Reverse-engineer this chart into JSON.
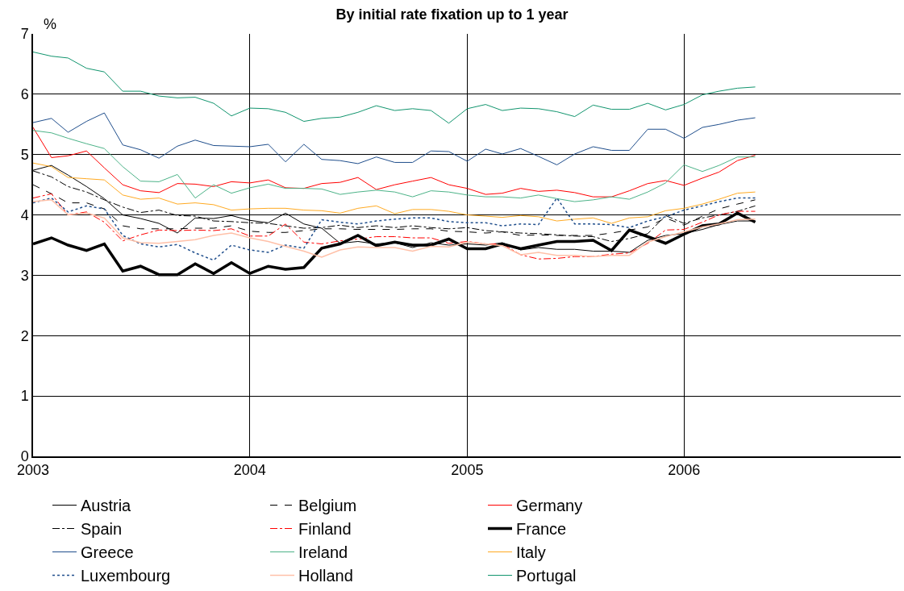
{
  "chart_data": {
    "type": "line",
    "title": "By initial rate fixation up to 1 year",
    "ylabel": "%",
    "x": [
      "2003-01",
      "2003-02",
      "2003-03",
      "2003-04",
      "2003-05",
      "2003-06",
      "2003-07",
      "2003-08",
      "2003-09",
      "2003-10",
      "2003-11",
      "2003-12",
      "2004-01",
      "2004-02",
      "2004-03",
      "2004-04",
      "2004-05",
      "2004-06",
      "2004-07",
      "2004-08",
      "2004-09",
      "2004-10",
      "2004-11",
      "2004-12",
      "2005-01",
      "2005-02",
      "2005-03",
      "2005-04",
      "2005-05",
      "2005-06",
      "2005-07",
      "2005-08",
      "2005-09",
      "2005-10",
      "2005-11",
      "2005-12",
      "2006-01",
      "2006-02",
      "2006-03",
      "2006-04",
      "2006-05"
    ],
    "xlim": [
      "2003-01",
      "2007-01"
    ],
    "xticks": [
      {
        "value": "2003-01",
        "label": "2003"
      },
      {
        "value": "2004-01",
        "label": "2004"
      },
      {
        "value": "2005-01",
        "label": "2005"
      },
      {
        "value": "2006-01",
        "label": "2006"
      }
    ],
    "ylim": [
      0,
      7
    ],
    "yticks": [
      0,
      1,
      2,
      3,
      4,
      5,
      6,
      7
    ],
    "grid": true,
    "legend": "bottom",
    "marker": "none",
    "series": [
      {
        "name": "Austria",
        "color": "#000000",
        "line_style": "solid",
        "values": [
          4.74,
          4.82,
          4.66,
          4.47,
          4.27,
          4.0,
          3.94,
          3.86,
          3.7,
          3.95,
          3.94,
          3.99,
          3.91,
          3.87,
          4.03,
          3.85,
          3.78,
          3.53,
          3.56,
          3.52,
          3.54,
          3.46,
          3.54,
          3.5,
          3.52,
          3.5,
          3.54,
          3.42,
          3.46,
          3.43,
          3.43,
          3.4,
          3.4,
          3.38,
          3.58,
          3.66,
          3.69,
          3.76,
          3.84,
          3.9,
          3.9
        ]
      },
      {
        "name": "Belgium",
        "color": "#000000",
        "line_style": "dashed",
        "values": [
          4.5,
          4.35,
          4.2,
          4.2,
          4.1,
          3.82,
          3.77,
          3.77,
          3.77,
          3.78,
          3.78,
          3.82,
          3.73,
          3.71,
          3.71,
          3.74,
          3.77,
          3.77,
          3.76,
          3.76,
          3.76,
          3.77,
          3.77,
          3.73,
          3.72,
          3.7,
          3.72,
          3.66,
          3.67,
          3.66,
          3.66,
          3.66,
          3.7,
          3.75,
          3.8,
          3.95,
          3.83,
          3.98,
          4.1,
          4.18,
          4.25
        ]
      },
      {
        "name": "Germany",
        "color": "#ff0000",
        "line_style": "solid",
        "values": [
          5.45,
          4.95,
          4.98,
          5.06,
          4.78,
          4.5,
          4.4,
          4.37,
          4.52,
          4.51,
          4.47,
          4.55,
          4.53,
          4.58,
          4.45,
          4.44,
          4.52,
          4.54,
          4.62,
          4.42,
          4.5,
          4.56,
          4.62,
          4.5,
          4.44,
          4.34,
          4.36,
          4.44,
          4.39,
          4.41,
          4.37,
          4.3,
          4.3,
          4.4,
          4.52,
          4.57,
          4.49,
          4.61,
          4.71,
          4.9,
          4.99
        ]
      },
      {
        "name": "Spain",
        "color": "#000000",
        "line_style": "dashdot",
        "values": [
          4.73,
          4.63,
          4.47,
          4.38,
          4.25,
          4.13,
          4.04,
          4.08,
          3.99,
          3.98,
          3.9,
          3.89,
          3.87,
          3.86,
          3.82,
          3.78,
          3.79,
          3.83,
          3.79,
          3.82,
          3.79,
          3.82,
          3.79,
          3.77,
          3.79,
          3.74,
          3.72,
          3.7,
          3.69,
          3.67,
          3.65,
          3.64,
          3.56,
          3.61,
          3.69,
          3.99,
          3.86,
          3.95,
          4.0,
          4.06,
          4.15
        ]
      },
      {
        "name": "Finland",
        "color": "#ff0000",
        "line_style": "dashdot",
        "values": [
          4.28,
          4.35,
          4.0,
          4.05,
          3.88,
          3.57,
          3.67,
          3.75,
          3.74,
          3.75,
          3.74,
          3.77,
          3.65,
          3.65,
          3.85,
          3.55,
          3.52,
          3.57,
          3.6,
          3.64,
          3.64,
          3.62,
          3.62,
          3.53,
          3.56,
          3.52,
          3.52,
          3.34,
          3.27,
          3.28,
          3.31,
          3.31,
          3.35,
          3.37,
          3.53,
          3.75,
          3.76,
          3.88,
          4.0,
          4.06,
          4.06
        ]
      },
      {
        "name": "France",
        "color": "#000000",
        "line_style": "solid",
        "values": [
          3.52,
          3.62,
          3.5,
          3.41,
          3.52,
          3.07,
          3.15,
          3.01,
          3.01,
          3.19,
          3.03,
          3.21,
          3.03,
          3.15,
          3.1,
          3.13,
          3.45,
          3.52,
          3.66,
          3.49,
          3.55,
          3.5,
          3.5,
          3.6,
          3.44,
          3.44,
          3.52,
          3.44,
          3.5,
          3.56,
          3.56,
          3.58,
          3.41,
          3.75,
          3.64,
          3.53,
          3.68,
          3.82,
          3.85,
          4.03,
          3.88
        ]
      },
      {
        "name": "Greece",
        "color": "#1f4e8c",
        "line_style": "solid",
        "values": [
          5.53,
          5.6,
          5.37,
          5.55,
          5.69,
          5.16,
          5.08,
          4.94,
          5.14,
          5.24,
          5.15,
          5.14,
          5.13,
          5.17,
          4.88,
          5.17,
          4.92,
          4.9,
          4.85,
          4.96,
          4.87,
          4.87,
          5.06,
          5.05,
          4.89,
          5.09,
          5.01,
          5.1,
          4.97,
          4.83,
          5.01,
          5.13,
          5.07,
          5.07,
          5.42,
          5.42,
          5.27,
          5.45,
          5.5,
          5.57,
          5.61
        ]
      },
      {
        "name": "Ireland",
        "color": "#4cb388",
        "line_style": "solid",
        "values": [
          5.4,
          5.36,
          5.27,
          5.18,
          5.1,
          4.8,
          4.56,
          4.55,
          4.67,
          4.28,
          4.5,
          4.36,
          4.45,
          4.51,
          4.44,
          4.44,
          4.43,
          4.34,
          4.38,
          4.41,
          4.38,
          4.3,
          4.4,
          4.38,
          4.33,
          4.3,
          4.3,
          4.28,
          4.33,
          4.27,
          4.22,
          4.25,
          4.3,
          4.26,
          4.38,
          4.53,
          4.83,
          4.72,
          4.82,
          4.96,
          4.96
        ]
      },
      {
        "name": "Italy",
        "color": "#ffaa22",
        "line_style": "solid",
        "values": [
          4.86,
          4.8,
          4.62,
          4.6,
          4.58,
          4.33,
          4.26,
          4.28,
          4.18,
          4.2,
          4.17,
          4.08,
          4.1,
          4.11,
          4.11,
          4.08,
          4.07,
          4.03,
          4.11,
          4.15,
          4.02,
          4.09,
          4.09,
          4.06,
          4.0,
          3.98,
          3.96,
          3.99,
          3.97,
          3.9,
          3.93,
          3.95,
          3.86,
          3.95,
          3.97,
          4.07,
          4.11,
          4.18,
          4.26,
          4.36,
          4.38
        ]
      },
      {
        "name": "Luxembourg",
        "color": "#1f4e8c",
        "line_style": "dotted",
        "values": [
          4.2,
          4.28,
          4.05,
          4.15,
          4.1,
          3.66,
          3.52,
          3.47,
          3.51,
          3.37,
          3.25,
          3.5,
          3.42,
          3.38,
          3.5,
          3.45,
          3.92,
          3.88,
          3.85,
          3.9,
          3.93,
          3.95,
          3.95,
          3.89,
          3.87,
          3.87,
          3.82,
          3.85,
          3.84,
          4.28,
          3.85,
          3.85,
          3.84,
          3.79,
          3.9,
          3.97,
          4.08,
          4.15,
          4.22,
          4.28,
          4.28
        ]
      },
      {
        "name": "Holland",
        "color": "#ffc0a8",
        "line_style": "solid",
        "values": [
          4.22,
          4.25,
          4.0,
          4.03,
          3.95,
          3.62,
          3.54,
          3.53,
          3.56,
          3.59,
          3.66,
          3.7,
          3.62,
          3.56,
          3.48,
          3.4,
          3.3,
          3.42,
          3.47,
          3.46,
          3.46,
          3.4,
          3.48,
          3.47,
          3.55,
          3.52,
          3.49,
          3.34,
          3.38,
          3.33,
          3.33,
          3.31,
          3.33,
          3.33,
          3.55,
          3.64,
          3.72,
          3.8,
          3.85,
          3.92,
          3.93
        ]
      },
      {
        "name": "Portugal",
        "color": "#11956e",
        "line_style": "solid",
        "values": [
          6.7,
          6.63,
          6.6,
          6.43,
          6.37,
          6.05,
          6.05,
          5.97,
          5.94,
          5.95,
          5.85,
          5.64,
          5.77,
          5.76,
          5.7,
          5.55,
          5.6,
          5.62,
          5.7,
          5.81,
          5.73,
          5.76,
          5.73,
          5.52,
          5.76,
          5.83,
          5.73,
          5.77,
          5.76,
          5.71,
          5.63,
          5.82,
          5.75,
          5.75,
          5.85,
          5.74,
          5.83,
          5.99,
          6.05,
          6.1,
          6.12
        ]
      }
    ]
  }
}
